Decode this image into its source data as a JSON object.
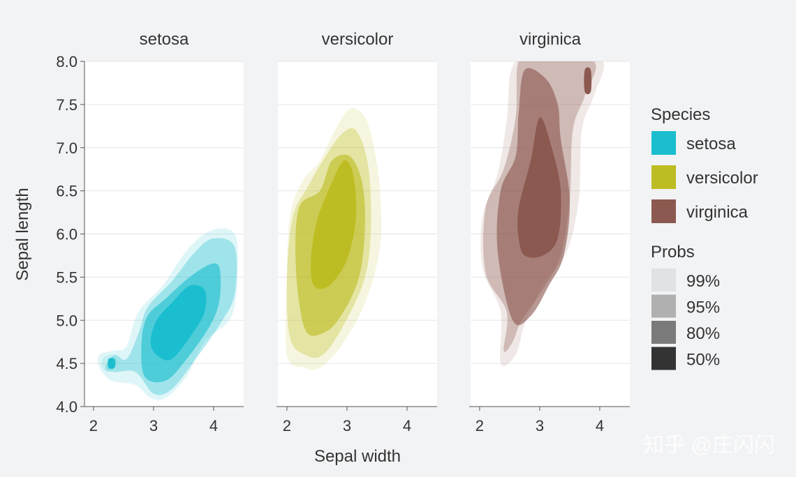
{
  "chart_data": {
    "type": "density-contour",
    "ylabel": "Sepal length",
    "xlabel": "Sepal width",
    "xlim": [
      1.85,
      4.5
    ],
    "ylim": [
      4.0,
      8.0
    ],
    "x_ticks": [
      2,
      3,
      4
    ],
    "y_ticks": [
      4.0,
      4.5,
      5.0,
      5.5,
      6.0,
      6.5,
      7.0,
      7.5,
      8.0
    ],
    "y_tick_labels": [
      "4.0",
      "4.5",
      "5.0",
      "5.5",
      "6.0",
      "6.5",
      "7.0",
      "7.5",
      "8.0"
    ],
    "grid": "horizontal",
    "legend_position": "right",
    "facets": [
      {
        "title": "setosa",
        "color": "#1bbecf",
        "levels": {
          "99%": [
            [
              2.1,
              4.45
            ],
            [
              2.3,
              4.3
            ],
            [
              2.7,
              4.25
            ],
            [
              2.95,
              4.1
            ],
            [
              3.2,
              4.1
            ],
            [
              3.55,
              4.35
            ],
            [
              3.85,
              4.75
            ],
            [
              4.3,
              5.05
            ],
            [
              4.4,
              5.6
            ],
            [
              4.35,
              6.0
            ],
            [
              4.0,
              6.05
            ],
            [
              3.6,
              5.85
            ],
            [
              3.15,
              5.4
            ],
            [
              2.75,
              5.1
            ],
            [
              2.55,
              4.7
            ],
            [
              2.35,
              4.65
            ],
            [
              2.1,
              4.6
            ]
          ],
          "95%": [
            [
              2.2,
              4.45
            ],
            [
              2.35,
              4.4
            ],
            [
              2.7,
              4.4
            ],
            [
              3.0,
              4.15
            ],
            [
              3.3,
              4.2
            ],
            [
              3.7,
              4.55
            ],
            [
              4.1,
              4.95
            ],
            [
              4.35,
              5.3
            ],
            [
              4.35,
              5.85
            ],
            [
              4.0,
              5.95
            ],
            [
              3.7,
              5.8
            ],
            [
              3.3,
              5.45
            ],
            [
              2.9,
              5.15
            ],
            [
              2.75,
              4.85
            ],
            [
              2.55,
              4.55
            ],
            [
              2.35,
              4.6
            ]
          ],
          "80%": [
            [
              2.85,
              4.35
            ],
            [
              3.2,
              4.3
            ],
            [
              3.55,
              4.55
            ],
            [
              3.95,
              4.95
            ],
            [
              4.1,
              5.25
            ],
            [
              4.1,
              5.6
            ],
            [
              3.95,
              5.65
            ],
            [
              3.6,
              5.5
            ],
            [
              3.2,
              5.25
            ],
            [
              2.9,
              5.05
            ],
            [
              2.8,
              4.75
            ]
          ],
          "50%": [
            [
              3.05,
              4.6
            ],
            [
              3.3,
              4.55
            ],
            [
              3.65,
              4.85
            ],
            [
              3.85,
              5.1
            ],
            [
              3.85,
              5.35
            ],
            [
              3.6,
              5.4
            ],
            [
              3.3,
              5.2
            ],
            [
              3.05,
              5.0
            ],
            [
              2.95,
              4.75
            ]
          ],
          "99%-b": [
            [
              2.15,
              4.45
            ],
            [
              2.25,
              4.4
            ],
            [
              2.4,
              4.5
            ],
            [
              2.3,
              4.6
            ],
            [
              2.15,
              4.55
            ]
          ],
          "50%-b": [
            [
              2.25,
              4.45
            ],
            [
              2.35,
              4.45
            ],
            [
              2.35,
              4.55
            ],
            [
              2.25,
              4.55
            ]
          ]
        }
      },
      {
        "title": "versicolor",
        "color": "#bdbd23",
        "levels": {
          "99%": [
            [
              2.0,
              4.6
            ],
            [
              2.3,
              4.45
            ],
            [
              2.55,
              4.45
            ],
            [
              2.9,
              4.7
            ],
            [
              3.3,
              5.2
            ],
            [
              3.55,
              5.85
            ],
            [
              3.55,
              6.5
            ],
            [
              3.45,
              7.0
            ],
            [
              3.3,
              7.35
            ],
            [
              3.05,
              7.45
            ],
            [
              2.8,
              7.2
            ],
            [
              2.55,
              6.85
            ],
            [
              2.25,
              6.6
            ],
            [
              2.05,
              6.2
            ],
            [
              2.0,
              5.5
            ]
          ],
          "95%": [
            [
              2.05,
              4.8
            ],
            [
              2.3,
              4.6
            ],
            [
              2.6,
              4.6
            ],
            [
              2.95,
              4.95
            ],
            [
              3.3,
              5.5
            ],
            [
              3.4,
              6.1
            ],
            [
              3.35,
              6.8
            ],
            [
              3.15,
              7.2
            ],
            [
              2.9,
              7.15
            ],
            [
              2.6,
              6.85
            ],
            [
              2.35,
              6.55
            ],
            [
              2.1,
              6.2
            ],
            [
              2.0,
              5.5
            ]
          ],
          "80%": [
            [
              2.3,
              4.9
            ],
            [
              2.6,
              4.85
            ],
            [
              2.9,
              5.05
            ],
            [
              3.2,
              5.5
            ],
            [
              3.3,
              6.1
            ],
            [
              3.25,
              6.6
            ],
            [
              3.05,
              6.9
            ],
            [
              2.75,
              6.85
            ],
            [
              2.55,
              6.5
            ],
            [
              2.2,
              6.3
            ],
            [
              2.15,
              5.6
            ]
          ],
          "50%": [
            [
              2.45,
              5.4
            ],
            [
              2.7,
              5.4
            ],
            [
              3.0,
              5.7
            ],
            [
              3.15,
              6.2
            ],
            [
              3.1,
              6.7
            ],
            [
              2.95,
              6.85
            ],
            [
              2.75,
              6.6
            ],
            [
              2.5,
              6.15
            ],
            [
              2.4,
              5.7
            ]
          ]
        }
      },
      {
        "title": "virginica",
        "color": "#8c5950",
        "levels": {
          "99%": [
            [
              2.35,
              4.5
            ],
            [
              2.6,
              4.6
            ],
            [
              2.75,
              4.95
            ],
            [
              3.05,
              5.4
            ],
            [
              3.45,
              5.8
            ],
            [
              3.65,
              6.4
            ],
            [
              3.7,
              7.2
            ],
            [
              3.9,
              7.6
            ],
            [
              4.05,
              8.0
            ],
            [
              3.4,
              8.0
            ],
            [
              2.6,
              8.0
            ],
            [
              2.45,
              7.3
            ],
            [
              2.3,
              6.7
            ],
            [
              2.05,
              6.2
            ],
            [
              2.05,
              5.6
            ],
            [
              2.35,
              5.1
            ]
          ],
          "95%": [
            [
              2.4,
              4.65
            ],
            [
              2.55,
              4.75
            ],
            [
              2.7,
              5.0
            ],
            [
              3.05,
              5.35
            ],
            [
              3.35,
              5.75
            ],
            [
              3.5,
              6.4
            ],
            [
              3.55,
              7.2
            ],
            [
              3.75,
              7.6
            ],
            [
              3.9,
              8.0
            ],
            [
              3.0,
              8.0
            ],
            [
              2.65,
              8.0
            ],
            [
              2.6,
              7.35
            ],
            [
              2.4,
              6.75
            ],
            [
              2.1,
              6.3
            ],
            [
              2.1,
              5.55
            ],
            [
              2.45,
              5.1
            ]
          ],
          "80%": [
            [
              2.55,
              5.0
            ],
            [
              2.85,
              5.05
            ],
            [
              3.15,
              5.4
            ],
            [
              3.4,
              5.75
            ],
            [
              3.5,
              6.4
            ],
            [
              3.35,
              7.1
            ],
            [
              3.3,
              7.5
            ],
            [
              3.1,
              7.8
            ],
            [
              2.75,
              7.9
            ],
            [
              2.65,
              7.4
            ],
            [
              2.6,
              6.9
            ],
            [
              2.35,
              6.5
            ],
            [
              2.3,
              5.8
            ]
          ],
          "50%": [
            [
              2.75,
              5.75
            ],
            [
              3.05,
              5.75
            ],
            [
              3.3,
              5.95
            ],
            [
              3.35,
              6.5
            ],
            [
              3.2,
              7.0
            ],
            [
              3.0,
              7.35
            ],
            [
              2.85,
              6.85
            ],
            [
              2.65,
              6.3
            ],
            [
              2.65,
              5.95
            ]
          ],
          "50%-b": [
            [
              3.75,
              7.65
            ],
            [
              3.85,
              7.65
            ],
            [
              3.85,
              7.9
            ],
            [
              3.75,
              7.9
            ]
          ]
        }
      }
    ],
    "legend": {
      "species_title": "Species",
      "species": [
        {
          "label": "setosa",
          "color": "#1bbecf"
        },
        {
          "label": "versicolor",
          "color": "#bdbd23"
        },
        {
          "label": "virginica",
          "color": "#8c5950"
        }
      ],
      "probs_title": "Probs",
      "probs": [
        {
          "label": "99%",
          "color": "#e1e2e4"
        },
        {
          "label": "95%",
          "color": "#b0b0b0"
        },
        {
          "label": "80%",
          "color": "#7a7a7a"
        },
        {
          "label": "50%",
          "color": "#333333"
        }
      ]
    },
    "level_opacity": {
      "99%": 0.14,
      "95%": 0.32,
      "80%": 0.62,
      "50%": 1.0
    }
  },
  "watermark": "知乎 @庄闪闪"
}
